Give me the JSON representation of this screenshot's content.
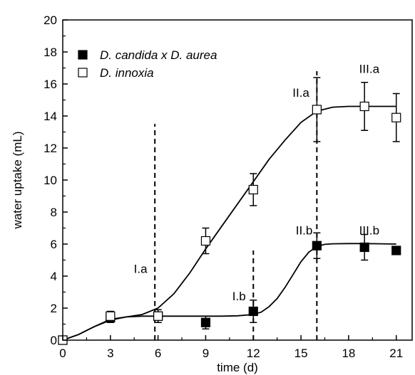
{
  "chart_data": {
    "type": "scatter",
    "xlabel": "time (d)",
    "ylabel": "water uptake (mL)",
    "xlim": [
      0,
      22
    ],
    "ylim": [
      0,
      20
    ],
    "xticks": [
      0,
      3,
      6,
      9,
      12,
      15,
      18,
      21
    ],
    "yticks": [
      0,
      2,
      4,
      6,
      8,
      10,
      12,
      14,
      16,
      18,
      20
    ],
    "legend_position": "top-left",
    "series": [
      {
        "name": "D. candida x D. aurea",
        "marker": "filled-square",
        "color": "#000000",
        "points": [
          {
            "x": 0,
            "y": 0
          },
          {
            "x": 3,
            "y": 1.4,
            "err": 0.3
          },
          {
            "x": 6,
            "y": 1.5,
            "err": 0.4
          },
          {
            "x": 9,
            "y": 1.1,
            "err": 0.4
          },
          {
            "x": 12,
            "y": 1.8,
            "err": 0.7
          },
          {
            "x": 16,
            "y": 5.9,
            "err": 0.8
          },
          {
            "x": 19,
            "y": 5.8,
            "err": 0.8
          },
          {
            "x": 21,
            "y": 5.6,
            "err": 0.2
          }
        ],
        "fit_curve": [
          [
            0,
            0
          ],
          [
            1,
            0.35
          ],
          [
            2,
            0.85
          ],
          [
            3,
            1.25
          ],
          [
            4,
            1.45
          ],
          [
            5,
            1.5
          ],
          [
            6,
            1.5
          ],
          [
            7,
            1.5
          ],
          [
            8,
            1.5
          ],
          [
            9,
            1.5
          ],
          [
            10,
            1.5
          ],
          [
            11,
            1.52
          ],
          [
            12,
            1.6
          ],
          [
            12.5,
            1.75
          ],
          [
            13,
            2.1
          ],
          [
            13.5,
            2.6
          ],
          [
            14,
            3.3
          ],
          [
            14.5,
            4.1
          ],
          [
            15,
            4.9
          ],
          [
            15.5,
            5.5
          ],
          [
            16,
            5.85
          ],
          [
            16.5,
            5.98
          ],
          [
            17,
            6.02
          ],
          [
            18,
            6.03
          ],
          [
            19,
            6.03
          ],
          [
            20,
            6.02
          ],
          [
            21,
            6.0
          ]
        ]
      },
      {
        "name": "D. innoxia",
        "marker": "open-square",
        "color": "#000000",
        "points": [
          {
            "x": 0,
            "y": 0
          },
          {
            "x": 3,
            "y": 1.5,
            "err": 0.3
          },
          {
            "x": 6,
            "y": 1.5,
            "err": 0.4
          },
          {
            "x": 9,
            "y": 6.2,
            "err": 0.8
          },
          {
            "x": 12,
            "y": 9.4,
            "err": 1.0
          },
          {
            "x": 16,
            "y": 14.4,
            "err": 2.0
          },
          {
            "x": 19,
            "y": 14.6,
            "err": 1.5
          },
          {
            "x": 21,
            "y": 13.9,
            "err": 1.5
          }
        ],
        "fit_curve": [
          [
            0,
            0
          ],
          [
            1,
            0.35
          ],
          [
            2,
            0.85
          ],
          [
            3,
            1.3
          ],
          [
            4,
            1.45
          ],
          [
            5,
            1.6
          ],
          [
            6,
            2.0
          ],
          [
            7,
            2.9
          ],
          [
            8,
            4.2
          ],
          [
            9,
            5.7
          ],
          [
            10,
            7.1
          ],
          [
            11,
            8.5
          ],
          [
            12,
            9.9
          ],
          [
            13,
            11.3
          ],
          [
            14,
            12.5
          ],
          [
            15,
            13.6
          ],
          [
            16,
            14.3
          ],
          [
            17,
            14.55
          ],
          [
            18,
            14.6
          ],
          [
            19,
            14.6
          ],
          [
            20,
            14.6
          ],
          [
            21,
            14.6
          ]
        ]
      }
    ],
    "reference_lines": [
      {
        "x": 5.8,
        "y_from": 0,
        "y_to": 13.5
      },
      {
        "x": 12.0,
        "y_from": 0,
        "y_to": 5.6
      },
      {
        "x": 16.0,
        "y_from": 0,
        "y_to": 16.8
      }
    ],
    "annotations": [
      {
        "text": "I.a",
        "x": 4.9,
        "y": 4.2
      },
      {
        "text": "I.b",
        "x": 11.1,
        "y": 2.5
      },
      {
        "text": "II.a",
        "x": 15.0,
        "y": 15.2
      },
      {
        "text": "II.b",
        "x": 15.2,
        "y": 6.6
      },
      {
        "text": "III.a",
        "x": 19.3,
        "y": 16.7
      },
      {
        "text": "III.b",
        "x": 19.3,
        "y": 6.6
      }
    ]
  }
}
